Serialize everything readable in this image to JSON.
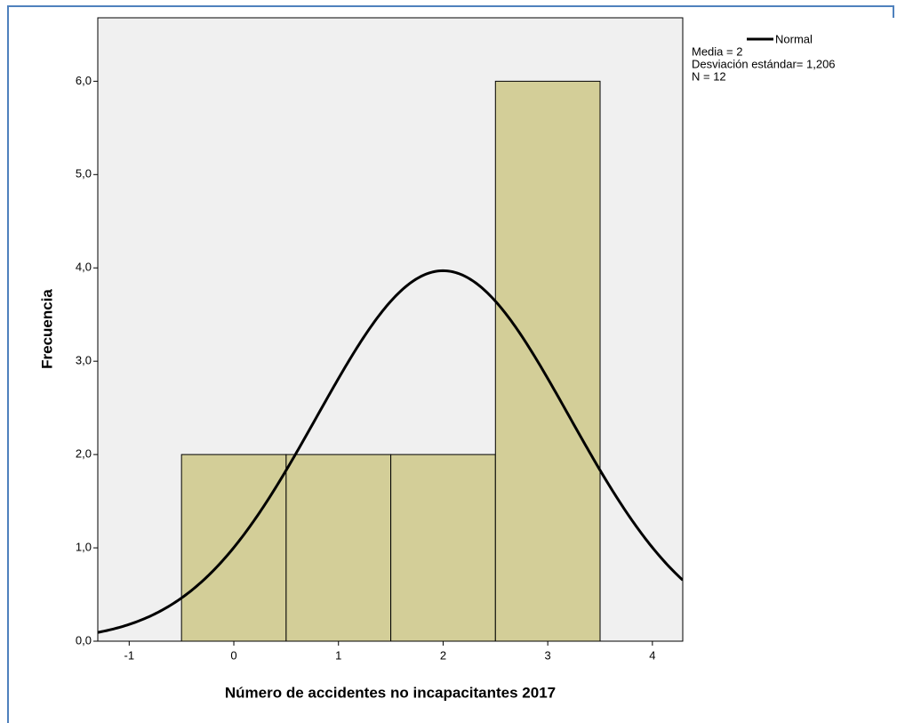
{
  "chart_data": {
    "type": "histogram",
    "xlabel": "Número de accidentes no incapacitantes 2017",
    "ylabel": "Frecuencia",
    "bins": [
      -0.5,
      0.5,
      1.5,
      2.5,
      3.5
    ],
    "counts": [
      2,
      2,
      2,
      6
    ],
    "color": "#d3ce98",
    "xlim": [
      -1.3,
      4.29
    ],
    "ylim": [
      0,
      6.68
    ],
    "xticks": [
      -1,
      0,
      1,
      2,
      3,
      4
    ],
    "yticks": [
      {
        "value": 0,
        "label": "0,0"
      },
      {
        "value": 1,
        "label": "1,0"
      },
      {
        "value": 2,
        "label": "2,0"
      },
      {
        "value": 3,
        "label": "3,0"
      },
      {
        "value": 4,
        "label": "4,0"
      },
      {
        "value": 5,
        "label": "5,0"
      },
      {
        "value": 6,
        "label": "6,0"
      }
    ],
    "normal": {
      "name": "Normal",
      "color": "#000000",
      "mean": {
        "value": 2,
        "label": "Media = 2"
      },
      "sd": {
        "value": 1.206,
        "label": "Desviación estándar= 1,206"
      },
      "n": {
        "value": 12,
        "label": "N = 12"
      }
    }
  }
}
